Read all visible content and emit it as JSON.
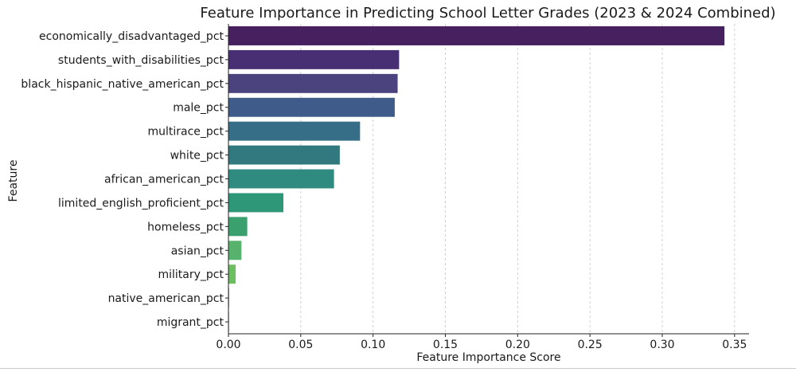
{
  "chart_data": {
    "type": "bar",
    "orientation": "horizontal",
    "title": "Feature Importance in Predicting School Letter Grades (2023 & 2024 Combined)",
    "xlabel": "Feature Importance Score",
    "ylabel": "Feature",
    "xlim": [
      0,
      0.36
    ],
    "xticks": [
      0.0,
      0.05,
      0.1,
      0.15,
      0.2,
      0.25,
      0.3,
      0.35
    ],
    "xtick_labels": [
      "0.00",
      "0.05",
      "0.10",
      "0.15",
      "0.20",
      "0.25",
      "0.30",
      "0.35"
    ],
    "grid": "x-dashed",
    "categories": [
      "economically_disadvantaged_pct",
      "students_with_disabilities_pct",
      "black_hispanic_native_american_pct",
      "male_pct",
      "multirace_pct",
      "white_pct",
      "african_american_pct",
      "limited_english_proficient_pct",
      "homeless_pct",
      "asian_pct",
      "military_pct",
      "native_american_pct",
      "migrant_pct"
    ],
    "values": [
      0.343,
      0.118,
      0.117,
      0.115,
      0.091,
      0.077,
      0.073,
      0.038,
      0.013,
      0.009,
      0.005,
      0.0005,
      0.0004
    ],
    "colors": [
      "#46205f",
      "#482f73",
      "#4a437e",
      "#3f5b89",
      "#366d87",
      "#31787f",
      "#2f8a80",
      "#2e9777",
      "#3aa16e",
      "#56b26d",
      "#6dbe62",
      "#7cc655",
      "#9ed046"
    ]
  }
}
